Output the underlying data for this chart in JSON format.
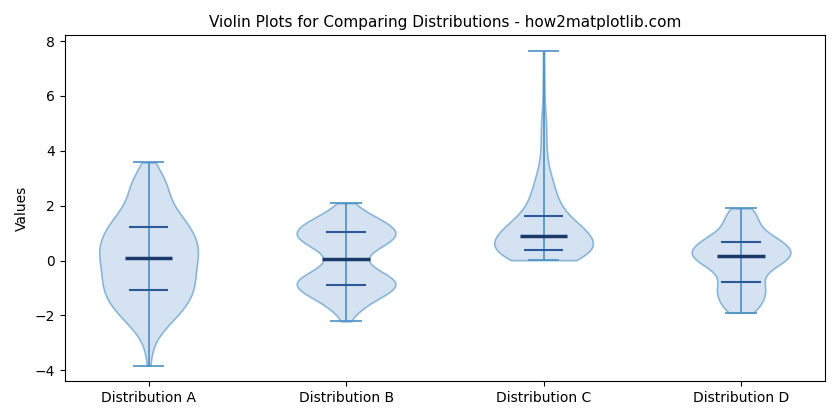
{
  "title": "Violin Plots for Comparing Distributions - how2matplotlib.com",
  "ylabel": "Values",
  "categories": [
    "Distribution A",
    "Distribution B",
    "Distribution C",
    "Distribution D"
  ],
  "violin_facecolor": "#b8cfe8",
  "violin_edgecolor": "#4a90c4",
  "median_color": "#1a3a6b",
  "quartile_color": "#2a5a9b",
  "bar_color": "#4a90c4",
  "figsize": [
    8.4,
    4.2
  ],
  "dpi": 100,
  "title_fontsize": 11,
  "violin_alpha": 0.6,
  "violin_linewidth": 1.2,
  "median_linewidth": 2.5,
  "quartile_linewidth": 1.5,
  "bar_linewidth": 1.2
}
